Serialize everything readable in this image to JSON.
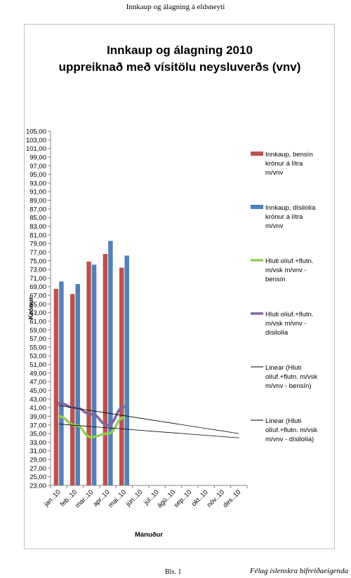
{
  "document": {
    "header": "Innkaup og álagning á eldsneyti",
    "footer_page": "Bls. 1",
    "footer_org": "Félag íslenskra bifreiðaeigenda"
  },
  "chart_data": {
    "type": "bar",
    "title_lines": [
      "Innkaup og álagning 2010",
      "uppreiknað með vísitölu neysluverðs (vnv)"
    ],
    "xlabel": "Mánuður",
    "ylabel": "Krónur",
    "ylim": [
      23,
      105
    ],
    "ytick_step": 2,
    "categories": [
      "jan..10",
      "feb..10",
      "mar..10",
      "apr..10",
      "mai..10",
      "jún..10",
      "júl..10",
      "ágú..10",
      "sep..10",
      "okt..10",
      "nóv..10",
      "des..10"
    ],
    "grid": false,
    "legend_position": "right",
    "bar_series": [
      {
        "name": "Innkaup, bensín krónur á lítra m/vnv",
        "legend_lines": [
          "Innkaup, bensín",
          "krónur á lítra",
          "m/vnv"
        ],
        "color": "#c0504d",
        "values": [
          68.5,
          67.3,
          74.8,
          76.6,
          73.4,
          null,
          null,
          null,
          null,
          null,
          null,
          null
        ]
      },
      {
        "name": "Innkaup, dísilolía krónur á lítra m/vnv",
        "legend_lines": [
          "Innkaup, dísilolía",
          "krónur á lítra",
          "m/vnv"
        ],
        "color": "#4f81bd",
        "values": [
          70.2,
          69.6,
          74.1,
          79.6,
          76.2,
          null,
          null,
          null,
          null,
          null,
          null,
          null
        ]
      }
    ],
    "line_series": [
      {
        "name": "Hluti olíuf.+flutn. m/vsk m/vnv - bensín",
        "legend_lines": [
          "Hluti olíuf.+flutn.",
          "m/vsk m/vnv -",
          "bensín"
        ],
        "color": "#92d050",
        "values": [
          39.0,
          37.0,
          34.2,
          35.0,
          38.7,
          null,
          null,
          null,
          null,
          null,
          null,
          null
        ]
      },
      {
        "name": "Hluti olíuf.+flutn. m/vsk m/vnv - dísilolía",
        "legend_lines": [
          "Hluti olíuf.+flutn.",
          "m/vsk m/vnv -",
          "dísilolía"
        ],
        "color": "#8064a2",
        "values": [
          42.0,
          41.0,
          39.5,
          37.0,
          41.2,
          null,
          null,
          null,
          null,
          null,
          null,
          null
        ]
      }
    ],
    "trend_lines": [
      {
        "name": "Linear (Hluti olíuf.+flutn. m/vsk m/vnv - bensín)",
        "legend_lines": [
          "Linear (Hluti",
          "olíuf.+flutn. m/vsk",
          "m/vnv - bensín)"
        ],
        "color": "#000000",
        "start": [
          1,
          37.2
        ],
        "end": [
          12,
          34.0
        ]
      },
      {
        "name": "Linear (Hluti olíuf.+flutn. m/vsk m/vnv - dísilolía)",
        "legend_lines": [
          "Linear (Hluti",
          "olíuf.+flutn. m/vsk",
          "m/vnv - dísilolía)"
        ],
        "color": "#000000",
        "start": [
          1,
          41.5
        ],
        "end": [
          12,
          35.0
        ]
      }
    ]
  }
}
